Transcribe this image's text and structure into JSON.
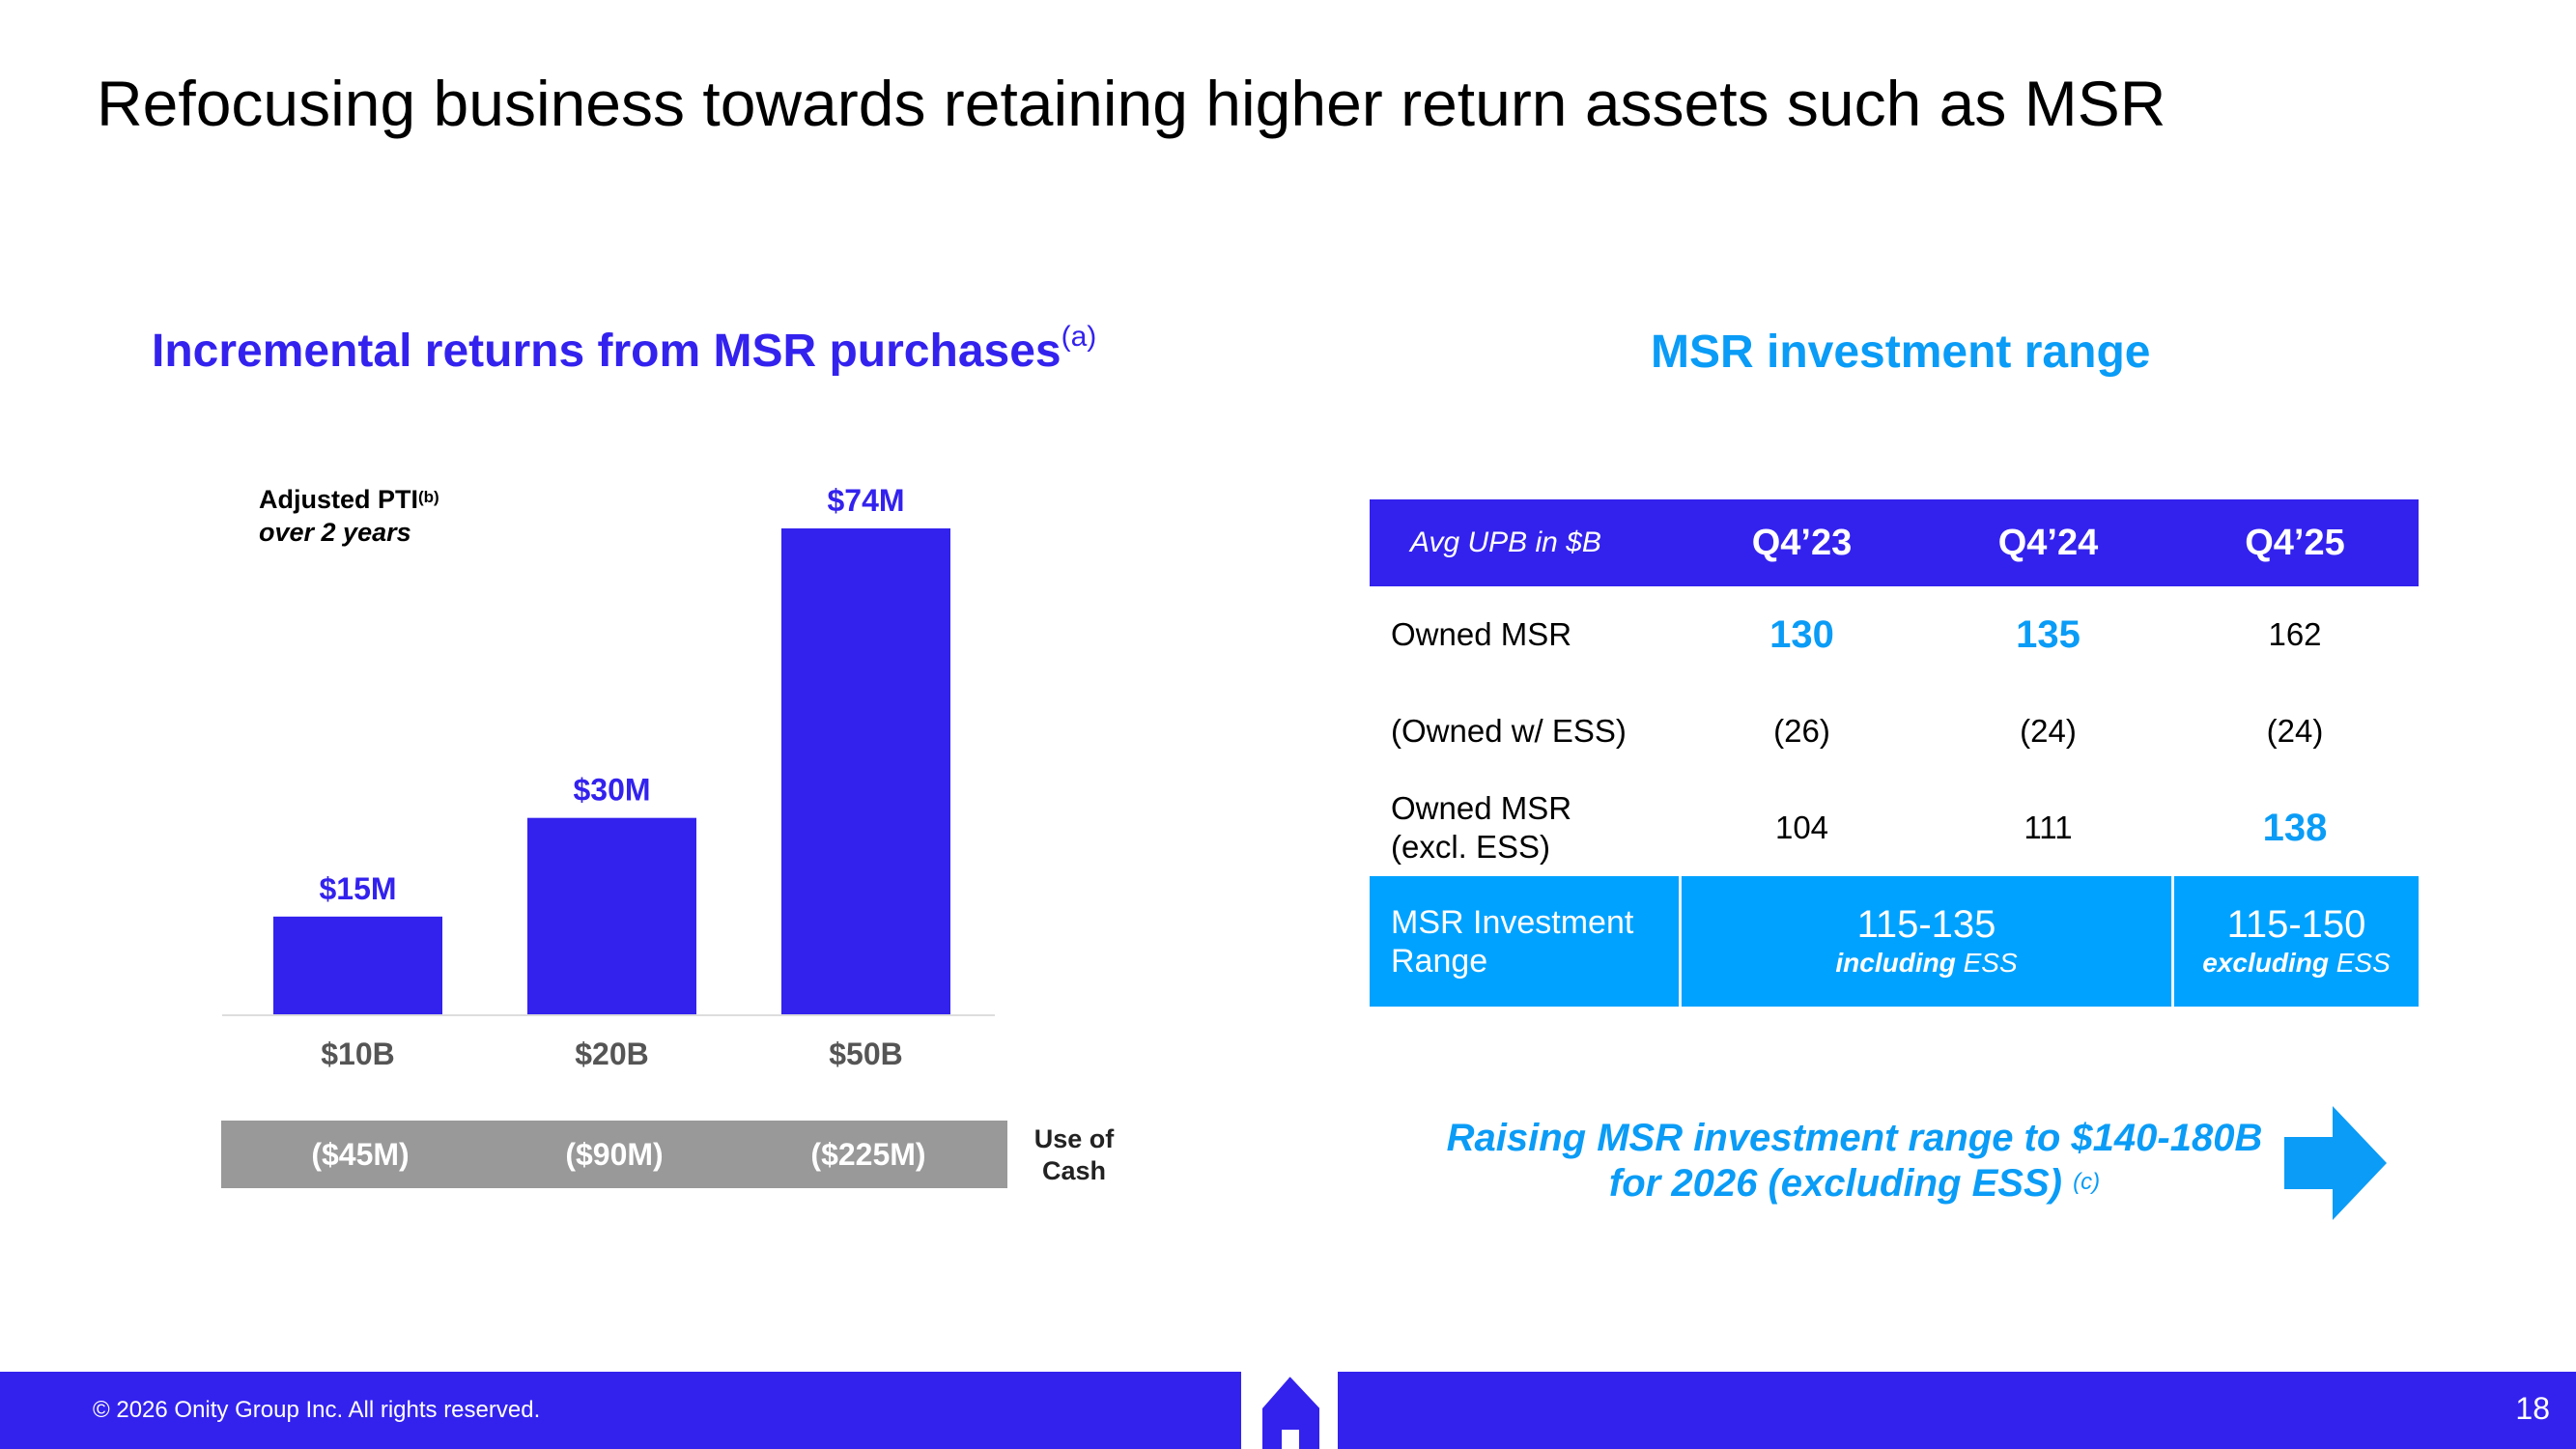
{
  "slide": {
    "title": "Refocusing business towards retaining higher return assets such as MSR",
    "page_number": "18",
    "copyright": "© 2026 Onity Group Inc. All rights reserved."
  },
  "left_section": {
    "heading": "Incremental returns from MSR purchases",
    "heading_note": "(a)",
    "pti_label_line1": "Adjusted PTI",
    "pti_label_note": "(b)",
    "pti_label_line2": "over 2 years",
    "use_of_cash": {
      "label_line1": "Use of",
      "label_line2": "Cash",
      "values": [
        "($45M)",
        "($90M)",
        "($225M)"
      ]
    }
  },
  "chart_data": {
    "type": "bar",
    "title": "Incremental returns from MSR purchases",
    "ylabel": "Adjusted PTI over 2 years",
    "xlabel": "",
    "categories": [
      "$10B",
      "$20B",
      "$50B"
    ],
    "values": [
      15,
      30,
      74
    ],
    "value_labels": [
      "$15M",
      "$30M",
      "$74M"
    ],
    "units": "$M",
    "ylim": [
      0,
      74
    ],
    "grid": false,
    "color": "#3322ee"
  },
  "right_section": {
    "heading": "MSR investment range",
    "table": {
      "header_label": "Avg UPB in $B",
      "quarters": [
        "Q4’23",
        "Q4’24",
        "Q4’25"
      ],
      "rows": [
        {
          "label_line1": "Owned MSR",
          "label_line2": "",
          "values": [
            "130",
            "135",
            "162"
          ]
        },
        {
          "label_line1": "(Owned w/ ESS)",
          "label_line2": "",
          "values": [
            "(26)",
            "(24)",
            "(24)"
          ]
        },
        {
          "label_line1": "Owned MSR",
          "label_line2": "(excl. ESS)",
          "values": [
            "104",
            "111",
            "138"
          ]
        }
      ],
      "range_row": {
        "label_line1": "MSR Investment",
        "label_line2": "Range",
        "range1_value": "115-135",
        "range1_note_bold": "including",
        "range1_note": " ESS",
        "range2_value": "115-150",
        "range2_note_bold": "excluding",
        "range2_note": " ESS"
      }
    },
    "callout": {
      "line1": "Raising MSR investment range to $140-180B",
      "line2": "for 2026 (excluding ESS)",
      "note": "(c)"
    }
  },
  "colors": {
    "brand_blue": "#3322ee",
    "accent_light_blue": "#0a9cf6",
    "range_row_blue": "#00a2ff",
    "cash_gray": "#999999"
  }
}
